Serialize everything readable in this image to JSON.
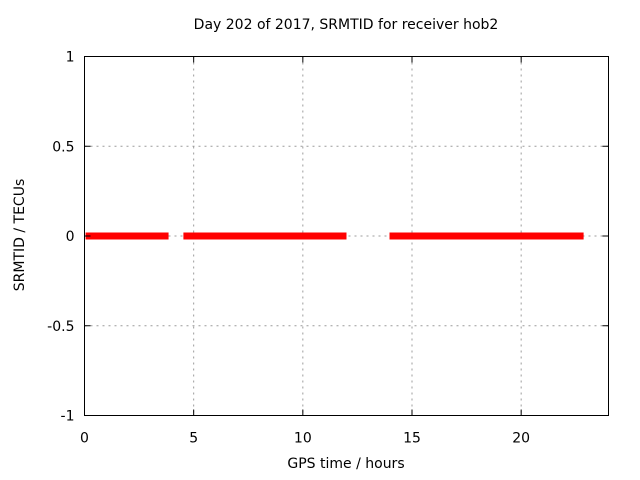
{
  "chart_data": {
    "type": "line",
    "title": "Day 202 of 2017, SRMTID for receiver hob2",
    "xlabel": "GPS time / hours",
    "ylabel": "SRMTID / TECUs",
    "xlim": [
      0,
      24
    ],
    "ylim": [
      -1,
      1
    ],
    "grid": true,
    "legend": "none",
    "background_color": "#ffffff",
    "border_color": "#000000",
    "grid_color": "#9c9c9c",
    "xticks": [
      {
        "v": 0,
        "label": "0"
      },
      {
        "v": 5,
        "label": "5"
      },
      {
        "v": 10,
        "label": "10"
      },
      {
        "v": 15,
        "label": "15"
      },
      {
        "v": 20,
        "label": "20"
      }
    ],
    "yticks": [
      {
        "v": -1,
        "label": "-1"
      },
      {
        "v": -0.5,
        "label": "-0.5"
      },
      {
        "v": 0,
        "label": "0"
      },
      {
        "v": 0.5,
        "label": "0.5"
      },
      {
        "v": 1,
        "label": "1"
      }
    ],
    "series": [
      {
        "name": "SRMTID",
        "color": "#ff0000",
        "line_width": 7,
        "segments": [
          {
            "y": 0,
            "x_start": 0.05,
            "x_end": 3.85
          },
          {
            "y": 0,
            "x_start": 4.53,
            "x_end": 12.0
          },
          {
            "y": 0,
            "x_start": 13.97,
            "x_end": 22.86
          }
        ]
      }
    ]
  }
}
